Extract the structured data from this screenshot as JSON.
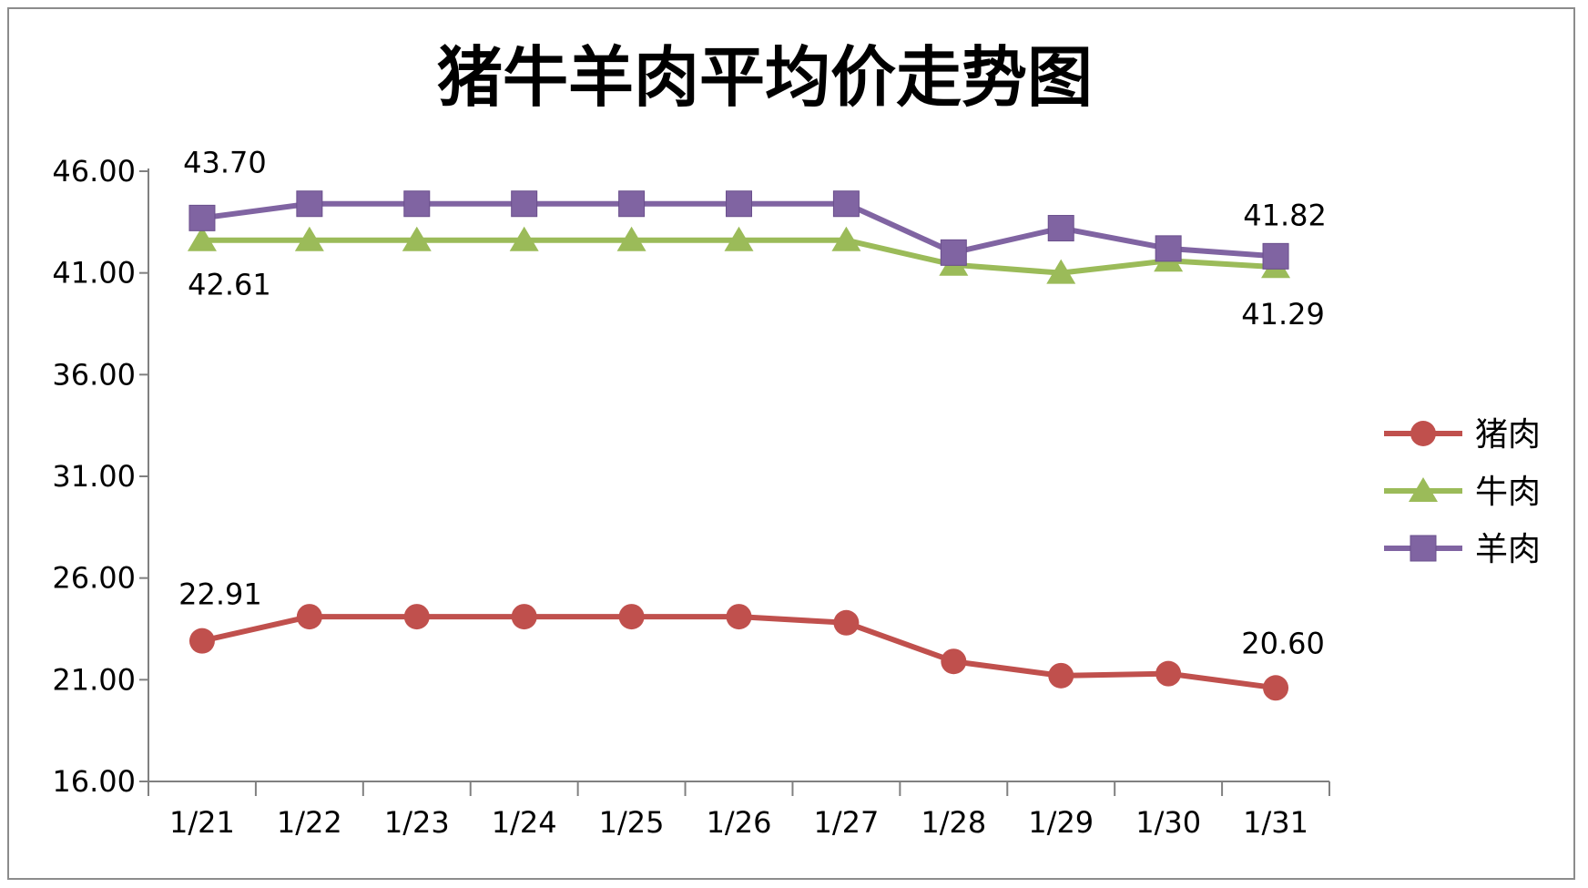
{
  "chart_data": {
    "type": "line",
    "title": "猪牛羊肉平均价走势图",
    "categories": [
      "1/21",
      "1/22",
      "1/23",
      "1/24",
      "1/25",
      "1/26",
      "1/27",
      "1/28",
      "1/29",
      "1/30",
      "1/31"
    ],
    "ylim": [
      16,
      46
    ],
    "yticks": [
      "16.00",
      "21.00",
      "26.00",
      "31.00",
      "36.00",
      "41.00",
      "46.00"
    ],
    "grid": false,
    "legend_position": "right",
    "series": [
      {
        "name": "猪肉",
        "color": "#c0504d",
        "marker": "circle",
        "values": [
          22.91,
          24.1,
          24.1,
          24.1,
          24.1,
          24.1,
          23.8,
          21.9,
          21.2,
          21.3,
          20.6
        ],
        "labels": {
          "0": "22.91",
          "10": "20.60"
        }
      },
      {
        "name": "牛肉",
        "color": "#9bbb59",
        "marker": "triangle",
        "values": [
          42.61,
          42.61,
          42.61,
          42.61,
          42.61,
          42.61,
          42.61,
          41.4,
          41.0,
          41.6,
          41.29
        ],
        "labels": {
          "0": "42.61",
          "10": "41.29"
        }
      },
      {
        "name": "羊肉",
        "color": "#8064a2",
        "marker": "square",
        "values": [
          43.7,
          44.4,
          44.4,
          44.4,
          44.4,
          44.4,
          44.4,
          42.0,
          43.2,
          42.2,
          41.82
        ],
        "labels": {
          "0": "43.70",
          "10": "41.82"
        }
      }
    ]
  }
}
